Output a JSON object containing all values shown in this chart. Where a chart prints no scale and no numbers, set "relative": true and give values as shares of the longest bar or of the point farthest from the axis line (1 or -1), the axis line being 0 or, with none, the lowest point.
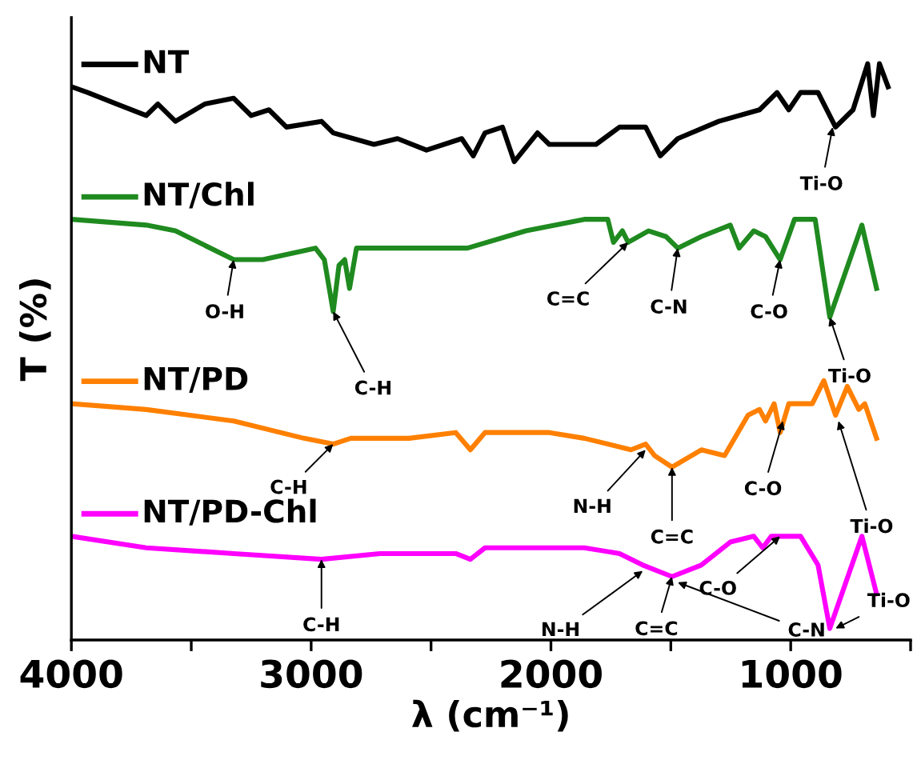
{
  "chart_data": {
    "type": "line",
    "relative": true,
    "xlabel": "λ (cm⁻¹)",
    "ylabel": "T (%)",
    "xlim": [
      4000,
      500
    ],
    "xticks": [
      4000,
      {
        "value": 3500,
        "label": null
      },
      3000,
      {
        "value": 2500,
        "label": null
      },
      2000,
      {
        "value": 1500,
        "label": null
      },
      1000,
      {
        "value": 500,
        "label": null
      }
    ],
    "tick_labels": "x",
    "grid": false,
    "legend": "top left",
    "marker": "none",
    "line_style": "solid",
    "series": [
      {
        "name": "NT",
        "color": "#000000",
        "x": [
          4000,
          3932,
          3810,
          3688,
          3639,
          3566,
          3444,
          3323,
          3250,
          3176,
          3103,
          2957,
          2908,
          2738,
          2640,
          2519,
          2372,
          2324,
          2275,
          2202,
          2153,
          2056,
          2007,
          1812,
          1714,
          1605,
          1544,
          1471,
          1300,
          1130,
          1057,
          1008,
          959,
          886,
          813,
          740,
          679,
          655,
          630,
          594
        ],
        "values": [
          0.96,
          0.95,
          0.93,
          0.91,
          0.93,
          0.9,
          0.93,
          0.94,
          0.91,
          0.92,
          0.89,
          0.9,
          0.88,
          0.86,
          0.87,
          0.85,
          0.87,
          0.84,
          0.88,
          0.89,
          0.83,
          0.88,
          0.86,
          0.86,
          0.89,
          0.89,
          0.84,
          0.87,
          0.9,
          0.92,
          0.95,
          0.92,
          0.95,
          0.95,
          0.89,
          0.92,
          1.0,
          0.91,
          1.0,
          0.96
        ]
      },
      {
        "name": "NT/Chl",
        "color": "#1f8a1f",
        "x": [
          4000,
          3688,
          3566,
          3323,
          3201,
          2982,
          2945,
          2908,
          2884,
          2860,
          2840,
          2811,
          2348,
          2104,
          1861,
          1763,
          1739,
          1702,
          1678,
          1593,
          1520,
          1471,
          1373,
          1252,
          1215,
          1154,
          1105,
          1044,
          984,
          898,
          837,
          703,
          642
        ],
        "values": [
          0.73,
          0.72,
          0.71,
          0.66,
          0.66,
          0.68,
          0.66,
          0.57,
          0.65,
          0.66,
          0.61,
          0.68,
          0.68,
          0.71,
          0.73,
          0.73,
          0.69,
          0.71,
          0.69,
          0.71,
          0.7,
          0.68,
          0.7,
          0.72,
          0.68,
          0.71,
          0.7,
          0.66,
          0.73,
          0.73,
          0.56,
          0.72,
          0.61
        ]
      },
      {
        "name": "NT/PD",
        "color": "#ff8000",
        "x": [
          4000,
          3688,
          3323,
          3030,
          2908,
          2835,
          2592,
          2397,
          2336,
          2275,
          2007,
          1861,
          1666,
          1605,
          1568,
          1495,
          1373,
          1276,
          1178,
          1130,
          1105,
          1069,
          1044,
          1008,
          910,
          862,
          813,
          764,
          716,
          691,
          642
        ],
        "values": [
          0.41,
          0.4,
          0.38,
          0.35,
          0.34,
          0.35,
          0.35,
          0.36,
          0.33,
          0.36,
          0.36,
          0.35,
          0.33,
          0.34,
          0.32,
          0.3,
          0.33,
          0.32,
          0.39,
          0.4,
          0.38,
          0.41,
          0.36,
          0.41,
          0.41,
          0.45,
          0.39,
          0.44,
          0.4,
          0.41,
          0.35
        ]
      },
      {
        "name": "NT/PD-Chl",
        "color": "#ff00ff",
        "x": [
          4000,
          3688,
          3323,
          2957,
          2713,
          2397,
          2336,
          2275,
          1861,
          1714,
          1617,
          1495,
          1373,
          1252,
          1154,
          1117,
          1081,
          1032,
          959,
          886,
          837,
          703,
          642
        ],
        "values": [
          0.18,
          0.16,
          0.15,
          0.14,
          0.15,
          0.15,
          0.14,
          0.16,
          0.16,
          0.15,
          0.13,
          0.11,
          0.13,
          0.17,
          0.18,
          0.16,
          0.18,
          0.18,
          0.18,
          0.13,
          0.02,
          0.18,
          0.08
        ]
      }
    ],
    "annotations": [
      {
        "text": "Ti-O",
        "x": 825,
        "y": 0.89
      },
      {
        "text": "O-H",
        "x": 3323,
        "y": 0.66
      },
      {
        "text": "C-H",
        "x": 2908,
        "y": 0.57
      },
      {
        "text": "C=C",
        "x": 1678,
        "y": 0.69
      },
      {
        "text": "C-N",
        "x": 1471,
        "y": 0.68
      },
      {
        "text": "C-O",
        "x": 1044,
        "y": 0.66
      },
      {
        "text": "Ti-O",
        "x": 837,
        "y": 0.56
      },
      {
        "text": "C-H",
        "x": 2908,
        "y": 0.34
      },
      {
        "text": "N-H",
        "x": 1605,
        "y": 0.33
      },
      {
        "text": "C=C",
        "x": 1495,
        "y": 0.3
      },
      {
        "text": "C-O",
        "x": 1032,
        "y": 0.38
      },
      {
        "text": "Ti-O",
        "x": 801,
        "y": 0.38
      },
      {
        "text": "C-H",
        "x": 2957,
        "y": 0.14
      },
      {
        "text": "N-H",
        "x": 1617,
        "y": 0.12
      },
      {
        "text": "C=C",
        "x": 1495,
        "y": 0.11
      },
      {
        "text": "C-N",
        "x": 1471,
        "y": 0.1
      },
      {
        "text": "C-O",
        "x": 1044,
        "y": 0.18
      },
      {
        "text": "Ti-O",
        "x": 813,
        "y": 0.02
      }
    ]
  }
}
